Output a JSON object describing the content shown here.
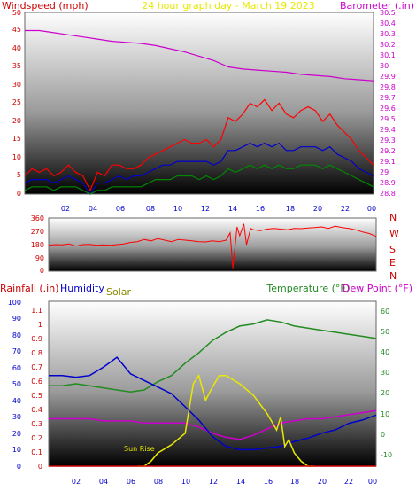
{
  "title": "24 hour graph day - March 19 2023",
  "colors": {
    "wind_gust": "#ff0000",
    "wind_avg": "#0000cc",
    "wind_low": "#008800",
    "barometer": "#cc00cc",
    "direction": "#ff0000",
    "temperature": "#228b22",
    "dewpoint": "#cc00cc",
    "humidity": "#0000cc",
    "solar": "#e8e800",
    "rainfall": "#cc0000",
    "title": "#e8e800"
  },
  "chart_data": [
    {
      "type": "line",
      "title": "24 hour graph day - March 19 2023",
      "ylabel": "Windspeed (mph)",
      "ylabel_right": "Barometer (.in)",
      "ylim": [
        0,
        50
      ],
      "yticks": [
        "0",
        "5",
        "10",
        "15",
        "20",
        "25",
        "30",
        "35",
        "40",
        "45",
        "50"
      ],
      "ylim_right": [
        28.8,
        30.5
      ],
      "yticks_right": [
        "28.8",
        "28.9",
        "29",
        "29.1",
        "29.2",
        "29.3",
        "29.4",
        "29.5",
        "29.6",
        "29.7",
        "29.8",
        "29.9",
        "30",
        "30.1",
        "30.2",
        "30.3",
        "30.4",
        "30.5"
      ],
      "xlim": [
        0,
        24
      ],
      "xticks": [
        "02",
        "04",
        "06",
        "08",
        "10",
        "12",
        "14",
        "16",
        "18",
        "20",
        "22",
        "00"
      ],
      "series": [
        {
          "name": "gust",
          "axis": "left",
          "color": "#ff0000",
          "x": [
            0,
            0.5,
            1,
            1.5,
            2,
            2.5,
            3,
            3.5,
            4,
            4.5,
            5,
            5.5,
            6,
            6.5,
            7,
            7.5,
            8,
            8.5,
            9,
            9.5,
            10,
            10.5,
            11,
            11.5,
            12,
            12.5,
            13,
            13.5,
            14,
            14.5,
            15,
            15.5,
            16,
            16.5,
            17,
            17.5,
            18,
            18.5,
            19,
            19.5,
            20,
            20.5,
            21,
            21.5,
            22,
            22.5,
            23,
            23.5,
            24
          ],
          "values": [
            5,
            7,
            6,
            7,
            5,
            6,
            8,
            6,
            5,
            1,
            6,
            5,
            8,
            8,
            7,
            7,
            8,
            10,
            11,
            12,
            13,
            14,
            15,
            14,
            14,
            15,
            13,
            15,
            21,
            20,
            22,
            25,
            24,
            26,
            23,
            25,
            22,
            21,
            23,
            24,
            23,
            20,
            22,
            19,
            17,
            15,
            12,
            10,
            8
          ]
        },
        {
          "name": "average",
          "axis": "left",
          "color": "#0000cc",
          "x": [
            0,
            0.5,
            1,
            1.5,
            2,
            2.5,
            3,
            3.5,
            4,
            4.5,
            5,
            5.5,
            6,
            6.5,
            7,
            7.5,
            8,
            8.5,
            9,
            9.5,
            10,
            10.5,
            11,
            11.5,
            12,
            12.5,
            13,
            13.5,
            14,
            14.5,
            15,
            15.5,
            16,
            16.5,
            17,
            17.5,
            18,
            18.5,
            19,
            19.5,
            20,
            20.5,
            21,
            21.5,
            22,
            22.5,
            23,
            23.5,
            24
          ],
          "values": [
            3,
            4,
            4,
            4,
            3,
            4,
            5,
            4,
            3,
            0,
            3,
            3,
            4,
            5,
            4,
            5,
            5,
            6,
            7,
            8,
            8,
            9,
            9,
            9,
            9,
            9,
            8,
            9,
            12,
            12,
            13,
            14,
            13,
            14,
            13,
            14,
            12,
            12,
            13,
            13,
            13,
            12,
            13,
            11,
            10,
            9,
            7,
            6,
            5
          ]
        },
        {
          "name": "low",
          "axis": "left",
          "color": "#008800",
          "x": [
            0,
            0.5,
            1,
            1.5,
            2,
            2.5,
            3,
            3.5,
            4,
            4.5,
            5,
            5.5,
            6,
            6.5,
            7,
            7.5,
            8,
            8.5,
            9,
            9.5,
            10,
            10.5,
            11,
            11.5,
            12,
            12.5,
            13,
            13.5,
            14,
            14.5,
            15,
            15.5,
            16,
            16.5,
            17,
            17.5,
            18,
            18.5,
            19,
            19.5,
            20,
            20.5,
            21,
            21.5,
            22,
            22.5,
            23,
            23.5,
            24
          ],
          "values": [
            1,
            2,
            2,
            2,
            1,
            2,
            2,
            2,
            1,
            0,
            1,
            1,
            2,
            2,
            2,
            2,
            2,
            3,
            4,
            4,
            4,
            5,
            5,
            5,
            4,
            5,
            4,
            5,
            7,
            6,
            7,
            8,
            7,
            8,
            7,
            8,
            7,
            7,
            8,
            8,
            8,
            7,
            8,
            7,
            6,
            5,
            4,
            3,
            2
          ]
        },
        {
          "name": "barometer",
          "axis": "right",
          "color": "#cc00cc",
          "x": [
            0,
            1,
            2,
            3,
            4,
            5,
            6,
            7,
            8,
            9,
            10,
            11,
            12,
            13,
            14,
            15,
            16,
            17,
            18,
            19,
            20,
            21,
            22,
            23,
            24
          ],
          "values": [
            30.33,
            30.33,
            30.31,
            30.29,
            30.27,
            30.25,
            30.23,
            30.22,
            30.21,
            30.19,
            30.16,
            30.13,
            30.09,
            30.05,
            29.99,
            29.97,
            29.96,
            29.95,
            29.94,
            29.92,
            29.91,
            29.9,
            29.88,
            29.87,
            29.86
          ]
        }
      ]
    },
    {
      "type": "line",
      "title": "",
      "ylabel": "",
      "ylim": [
        0,
        360
      ],
      "yticks": [
        "0",
        "90",
        "180",
        "270",
        "360"
      ],
      "compass": [
        "N",
        "W",
        "S",
        "E",
        "N"
      ],
      "xlim": [
        0,
        24
      ],
      "series": [
        {
          "name": "direction",
          "color": "#ff0000",
          "x": [
            0,
            0.5,
            1,
            1.5,
            2,
            2.5,
            3,
            3.5,
            4,
            4.5,
            5,
            5.5,
            6,
            6.5,
            7,
            7.5,
            8,
            8.5,
            9,
            9.5,
            10,
            10.5,
            11,
            11.5,
            12,
            12.5,
            13,
            13.3,
            13.5,
            13.8,
            14,
            14.3,
            14.5,
            14.8,
            15,
            15.5,
            16,
            16.5,
            17,
            17.5,
            18,
            18.5,
            19,
            19.5,
            20,
            20.5,
            21,
            21.5,
            22,
            22.5,
            23,
            23.5,
            24
          ],
          "values": [
            175,
            180,
            178,
            185,
            170,
            180,
            182,
            175,
            178,
            175,
            180,
            185,
            195,
            200,
            215,
            205,
            220,
            210,
            200,
            215,
            210,
            205,
            200,
            198,
            205,
            200,
            210,
            260,
            20,
            300,
            240,
            320,
            180,
            290,
            280,
            275,
            285,
            290,
            285,
            280,
            290,
            288,
            292,
            295,
            300,
            290,
            305,
            295,
            290,
            280,
            265,
            255,
            235
          ]
        }
      ]
    },
    {
      "type": "line",
      "title": "",
      "ylabel": "Rainfall (.in)",
      "ylabel_2": "Humidity",
      "ylabel_3": "Solar",
      "ylabel_right": "Temperature (°F)",
      "ylabel_right_2": "Dew Point (°F)",
      "ylim_humidity": [
        0,
        100
      ],
      "yticks_humidity": [
        "0",
        "10",
        "20",
        "30",
        "40",
        "50",
        "60",
        "70",
        "80",
        "90",
        "100"
      ],
      "ylim_rain": [
        0,
        1.15
      ],
      "yticks_rain": [
        "0",
        "0.1",
        "0.2",
        "0.3",
        "0.4",
        "0.5",
        "0.6",
        "0.7",
        "0.8",
        "0.9",
        "1",
        "1.1"
      ],
      "ylim_temp": [
        -15,
        65
      ],
      "yticks_temp": [
        "-10",
        "0",
        "10",
        "20",
        "30",
        "40",
        "50",
        "60"
      ],
      "xlim": [
        0,
        24
      ],
      "xticks": [
        "02",
        "04",
        "06",
        "08",
        "10",
        "12",
        "14",
        "16",
        "18",
        "20",
        "22",
        "00"
      ],
      "annotation": "Sun Rise",
      "series": [
        {
          "name": "temperature",
          "axis": "right",
          "color": "#228b22",
          "x": [
            0,
            1,
            2,
            3,
            4,
            5,
            6,
            7,
            8,
            9,
            10,
            11,
            12,
            13,
            14,
            15,
            16,
            17,
            18,
            19,
            20,
            21,
            22,
            23,
            24
          ],
          "values": [
            24,
            24,
            25,
            24,
            23,
            22,
            21,
            22,
            26,
            29,
            35,
            40,
            46,
            50,
            53,
            54,
            56,
            55,
            53,
            52,
            51,
            50,
            49,
            48,
            47
          ]
        },
        {
          "name": "dewpoint",
          "axis": "right",
          "color": "#cc00cc",
          "x": [
            0,
            1,
            2,
            3,
            4,
            5,
            6,
            7,
            8,
            9,
            10,
            11,
            12,
            13,
            14,
            15,
            16,
            17,
            18,
            19,
            20,
            21,
            22,
            23,
            24
          ],
          "values": [
            8,
            8,
            8,
            8,
            7,
            7,
            7,
            6,
            6,
            6,
            6,
            4,
            1,
            -1,
            -2,
            0,
            3,
            6,
            7,
            8,
            8,
            9,
            10,
            11,
            12
          ]
        },
        {
          "name": "humidity",
          "axis": "left",
          "color": "#0000cc",
          "x": [
            0,
            1,
            2,
            3,
            4,
            5,
            6,
            7,
            8,
            9,
            10,
            11,
            12,
            13,
            14,
            15,
            16,
            17,
            18,
            19,
            20,
            21,
            22,
            23,
            24
          ],
          "values": [
            55,
            55,
            54,
            55,
            60,
            66,
            56,
            52,
            48,
            44,
            36,
            28,
            18,
            12,
            10,
            10,
            11,
            12,
            15,
            17,
            20,
            22,
            26,
            28,
            31
          ]
        },
        {
          "name": "solar",
          "axis": "left",
          "color": "#e8e800",
          "x": [
            6.5,
            7,
            7.5,
            8,
            9,
            10,
            10.3,
            10.6,
            11,
            11.5,
            12,
            12.5,
            13,
            14,
            15,
            16,
            16.7,
            17,
            17.3,
            17.6,
            18,
            18.5,
            19,
            19.5
          ],
          "values": [
            0,
            0,
            3,
            8,
            13,
            20,
            35,
            50,
            55,
            40,
            48,
            55,
            55,
            50,
            43,
            32,
            22,
            30,
            12,
            16,
            8,
            3,
            0,
            0
          ]
        },
        {
          "name": "rainfall",
          "axis": "left",
          "color": "#cc0000",
          "x": [
            0,
            24
          ],
          "values": [
            0,
            0
          ]
        }
      ]
    }
  ]
}
